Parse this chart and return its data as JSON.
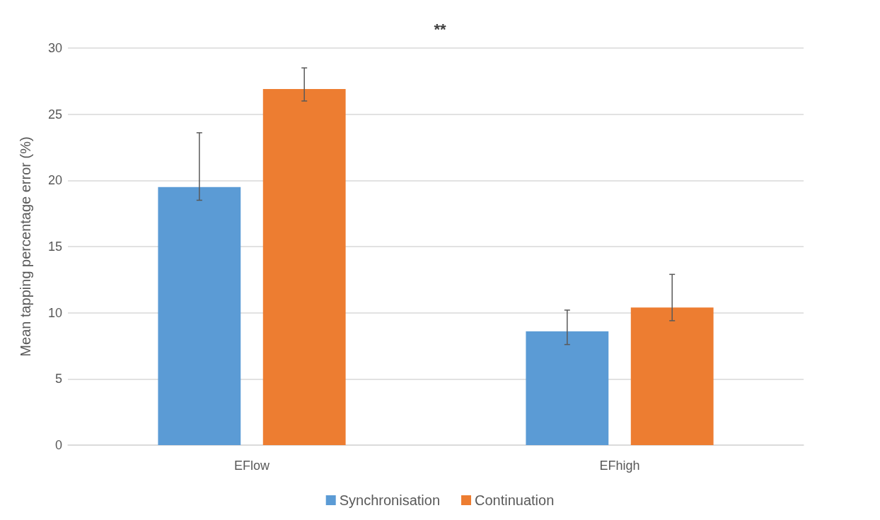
{
  "chart_data": {
    "type": "bar",
    "ylabel": "Mean tapping percentage error (%)",
    "categories": [
      "EFlow",
      "EFhigh"
    ],
    "series": [
      {
        "name": "Synchronisation",
        "color": "#5b9bd5",
        "values": [
          19.5,
          8.6
        ],
        "errors": [
          [
            18.5,
            23.6
          ],
          [
            7.6,
            10.2
          ]
        ]
      },
      {
        "name": "Continuation",
        "color": "#ed7d31",
        "values": [
          26.9,
          10.4
        ],
        "errors": [
          [
            26,
            28.5
          ],
          [
            9.4,
            12.9
          ]
        ]
      }
    ],
    "ylim": [
      0,
      30
    ],
    "yticks": [
      0,
      5,
      10,
      15,
      20,
      25,
      30
    ],
    "grid": "y",
    "legend": "bottom",
    "annotations": [
      "**"
    ]
  }
}
